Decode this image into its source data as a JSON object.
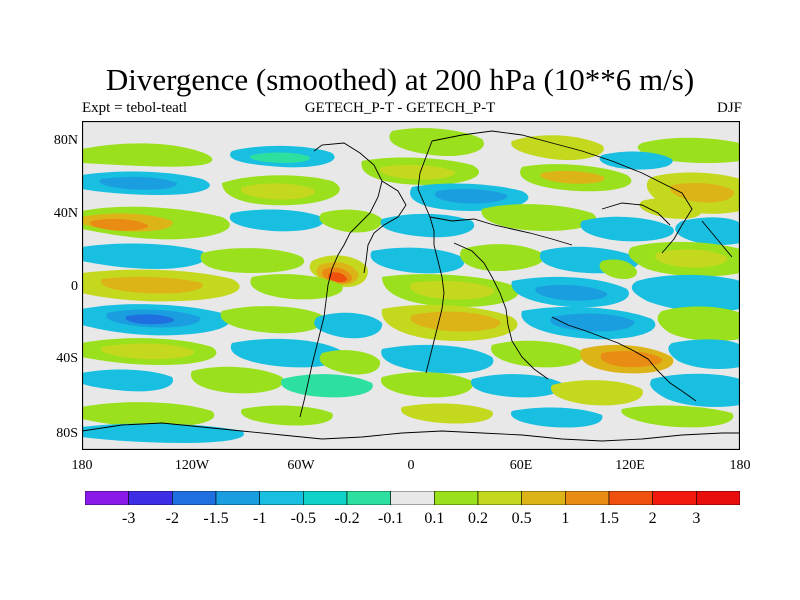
{
  "title": "Divergence (smoothed) at 200 hPa (10**6 m/s)",
  "subtitle_left": "Expt = tebol-teatl",
  "subtitle_center": "GETECH_P-T - GETECH_P-T",
  "subtitle_right": "DJF",
  "lat_labels": [
    "80N",
    "40N",
    "0",
    "40S",
    "80S"
  ],
  "lon_labels": [
    "180",
    "120W",
    "60W",
    "0",
    "60E",
    "120E",
    "180"
  ],
  "colorbar": {
    "labels": [
      "-3",
      "-2",
      "-1.5",
      "-1",
      "-0.5",
      "-0.2",
      "-0.1",
      "0.1",
      "0.2",
      "0.5",
      "1",
      "1.5",
      "2",
      "3"
    ],
    "colors": [
      "#8a1ae8",
      "#3d2ee6",
      "#1f6fe0",
      "#1a9ee0",
      "#19bfe0",
      "#10d3c8",
      "#2ee0a0",
      "#e8e8e8",
      "#9be01c",
      "#c4d81e",
      "#dcb418",
      "#e88c14",
      "#f0500e",
      "#f21a0e",
      "#e80e0e"
    ]
  },
  "colors": {
    "background": "#e8e8e8",
    "coast": "#000000"
  }
}
